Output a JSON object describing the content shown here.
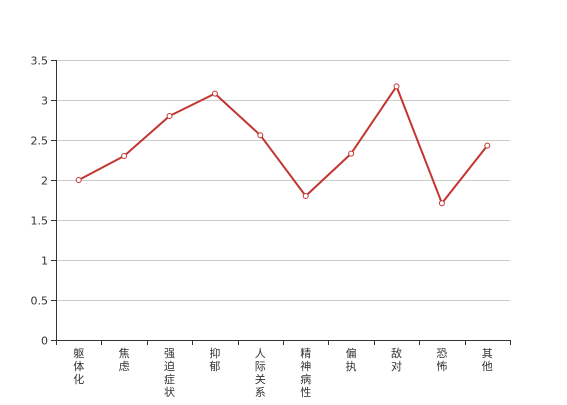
{
  "chart_data": {
    "type": "line",
    "title": "",
    "xlabel": "",
    "ylabel": "",
    "categories": [
      "躯体化",
      "焦虑",
      "强迫症状",
      "抑郁",
      "人际关系敏感",
      "精神病性",
      "偏执",
      "敌对",
      "恐怖",
      "其他"
    ],
    "series": [
      {
        "values": [
          2.0,
          2.3,
          2.8,
          3.08,
          2.56,
          1.8,
          2.33,
          3.17,
          1.71,
          2.43
        ]
      }
    ],
    "ylim": [
      0,
      3.5
    ],
    "yticks": [
      "0",
      "0.5",
      "1",
      "1.5",
      "2",
      "2.5",
      "3",
      "3.5"
    ],
    "grid": true,
    "legend": "none",
    "colors": {
      "line": "#c23531",
      "marker_fill": "#ffffff",
      "grid": "#cccccc",
      "axis": "#333333"
    }
  }
}
